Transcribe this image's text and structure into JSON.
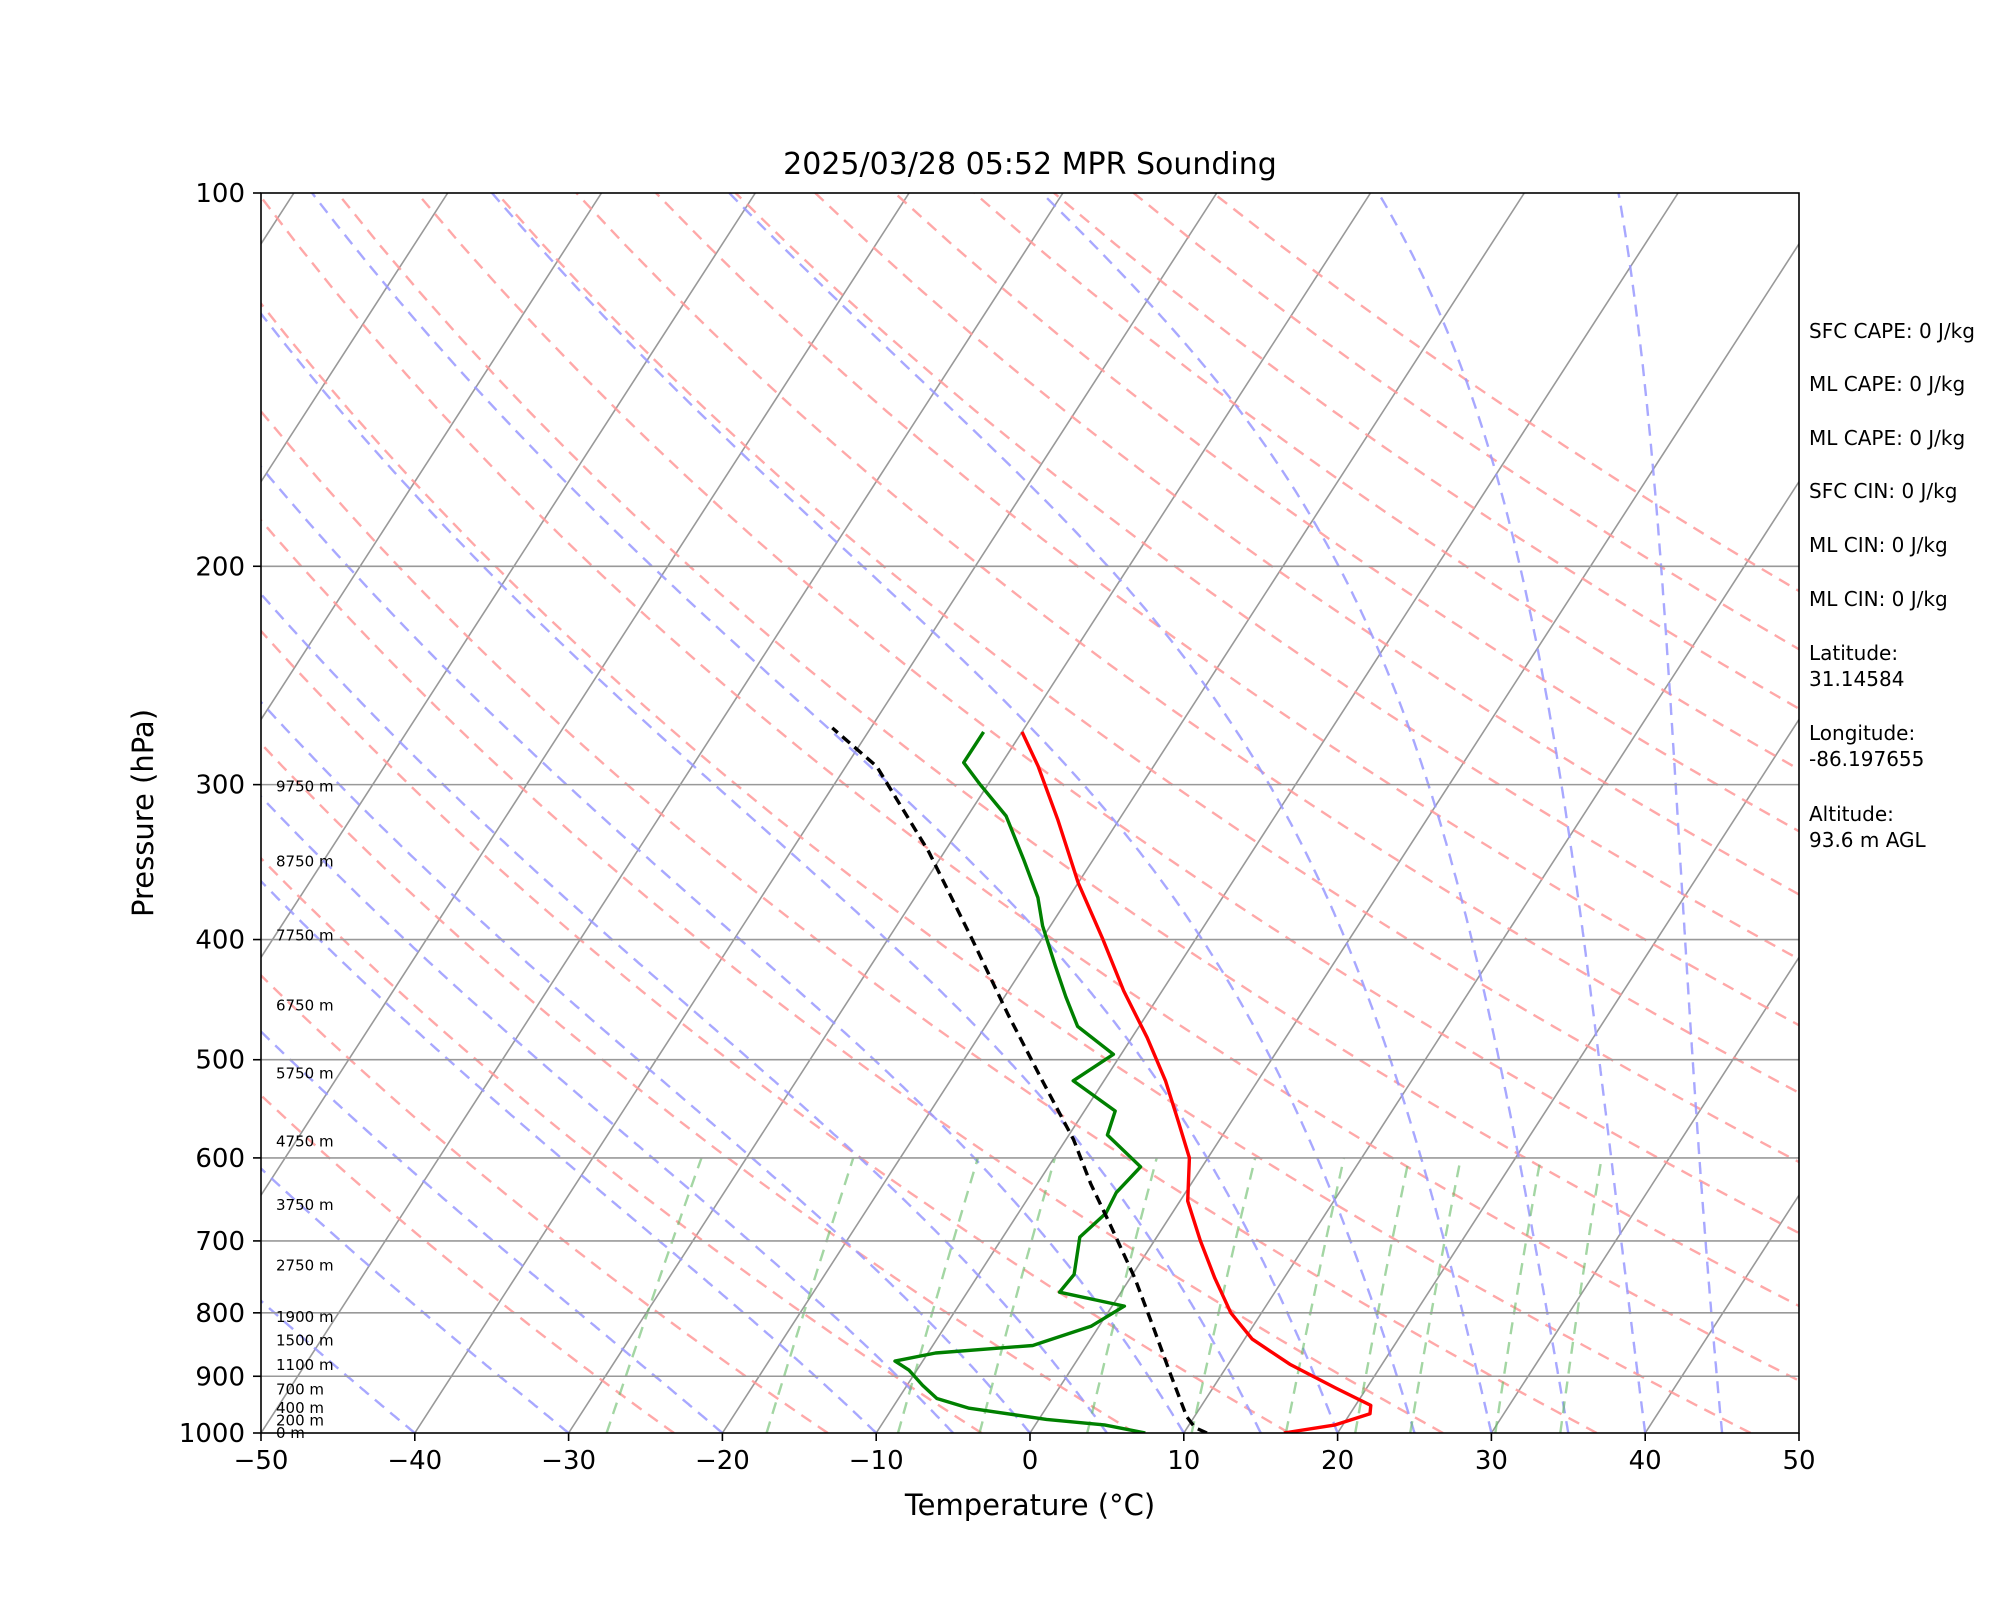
{
  "chart_data": {
    "type": "skew-t",
    "title": "2025/03/28 05:52 MPR Sounding",
    "xlabel": "Temperature (°C)",
    "ylabel": "Pressure (hPa)",
    "xlim": [
      -50,
      50
    ],
    "ylim": [
      1000,
      100
    ],
    "y_scale": "log",
    "x_ticks": [
      -50,
      -40,
      -30,
      -20,
      -10,
      0,
      10,
      20,
      30,
      40,
      50
    ],
    "x_tick_labels": [
      "−50",
      "−40",
      "−30",
      "−20",
      "−10",
      "0",
      "10",
      "20",
      "30",
      "40",
      "50"
    ],
    "y_ticks": [
      1000,
      900,
      800,
      700,
      600,
      500,
      400,
      300,
      200,
      100
    ],
    "y_tick_labels": [
      "1000",
      "900",
      "800",
      "700",
      "600",
      "500",
      "400",
      "300",
      "200",
      "100"
    ],
    "grid": true,
    "series": [
      {
        "color": "#ff0000",
        "style": "solid",
        "points": [
          [
            16.5,
            1000
          ],
          [
            19.5,
            985
          ],
          [
            21.3,
            965
          ],
          [
            21.0,
            950
          ],
          [
            18.0,
            920
          ],
          [
            14.0,
            880
          ],
          [
            10.5,
            840
          ],
          [
            8.0,
            800
          ],
          [
            5.5,
            750
          ],
          [
            3.0,
            700
          ],
          [
            0.5,
            650
          ],
          [
            -1.2,
            600
          ],
          [
            -3.5,
            560
          ],
          [
            -6.0,
            520
          ],
          [
            -9.0,
            480
          ],
          [
            -12.5,
            440
          ],
          [
            -16.0,
            400
          ],
          [
            -20.0,
            360
          ],
          [
            -24.0,
            320
          ],
          [
            -27.5,
            290
          ],
          [
            -30.0,
            272
          ]
        ]
      },
      {
        "color": "#008000",
        "style": "solid",
        "points": [
          [
            7.5,
            1000
          ],
          [
            4.5,
            985
          ],
          [
            0.5,
            975
          ],
          [
            -5.0,
            955
          ],
          [
            -7.5,
            938
          ],
          [
            -9.0,
            915
          ],
          [
            -10.5,
            890
          ],
          [
            -11.8,
            875
          ],
          [
            -9.5,
            862
          ],
          [
            -3.5,
            850
          ],
          [
            -3.0,
            845
          ],
          [
            -0.5,
            820
          ],
          [
            0.8,
            790
          ],
          [
            -4.0,
            770
          ],
          [
            -3.8,
            745
          ],
          [
            -5.0,
            695
          ],
          [
            -4.3,
            665
          ],
          [
            -4.5,
            640
          ],
          [
            -4.0,
            610
          ],
          [
            -7.5,
            575
          ],
          [
            -8.0,
            550
          ],
          [
            -12.0,
            520
          ],
          [
            -10.5,
            495
          ],
          [
            -14.0,
            470
          ],
          [
            -16.0,
            445
          ],
          [
            -18.0,
            420
          ],
          [
            -20.5,
            390
          ],
          [
            -22.0,
            370
          ],
          [
            -24.5,
            345
          ],
          [
            -27.5,
            318
          ],
          [
            -30.5,
            300
          ],
          [
            -32.5,
            288
          ],
          [
            -32.5,
            272
          ]
        ]
      },
      {
        "color": "#000000",
        "style": "dashed",
        "points": [
          [
            11.5,
            1000
          ],
          [
            10.5,
            990
          ],
          [
            9.5,
            970
          ],
          [
            6.8,
            900
          ],
          [
            3.5,
            820
          ],
          [
            0.3,
            750
          ],
          [
            -3.5,
            680
          ],
          [
            -6.5,
            630
          ],
          [
            -9.5,
            580
          ],
          [
            -14.0,
            520
          ],
          [
            -19.0,
            460
          ],
          [
            -24.5,
            400
          ],
          [
            -31.0,
            340
          ],
          [
            -38.0,
            290
          ],
          [
            -42.5,
            270
          ]
        ]
      }
    ],
    "reference_lines": {
      "dry_adiabats": {
        "color": "#ff9999",
        "style": "dashed"
      },
      "moist_adiabats": {
        "color": "#9999ff",
        "style": "dashed"
      },
      "mixing_ratio": {
        "color": "#66bb66",
        "style": "dashed"
      },
      "isotherms": {
        "color": "#999999",
        "style": "solid"
      }
    },
    "height_labels": [
      {
        "text": "0 m",
        "p": 1000
      },
      {
        "text": "200 m",
        "p": 977
      },
      {
        "text": "400 m",
        "p": 955
      },
      {
        "text": "700 m",
        "p": 922
      },
      {
        "text": "1100 m",
        "p": 881
      },
      {
        "text": "1500 m",
        "p": 842
      },
      {
        "text": "1900 m",
        "p": 806
      },
      {
        "text": "2750 m",
        "p": 733
      },
      {
        "text": "3750 m",
        "p": 655
      },
      {
        "text": "4750 m",
        "p": 582
      },
      {
        "text": "5750 m",
        "p": 513
      },
      {
        "text": "6750 m",
        "p": 452
      },
      {
        "text": "7750 m",
        "p": 397
      },
      {
        "text": "8750 m",
        "p": 346
      },
      {
        "text": "9750 m",
        "p": 301
      }
    ],
    "annotations": [
      "SFC CAPE: 0 J/kg",
      "ML CAPE: 0 J/kg",
      "ML CAPE: 0 J/kg",
      "SFC CIN: 0 J/kg",
      "ML CIN: 0 J/kg",
      "ML CIN: 0 J/kg",
      "Latitude:\n31.14584",
      "Longitude:\n-86.197655",
      "Altitude:\n93.6 m AGL"
    ]
  }
}
